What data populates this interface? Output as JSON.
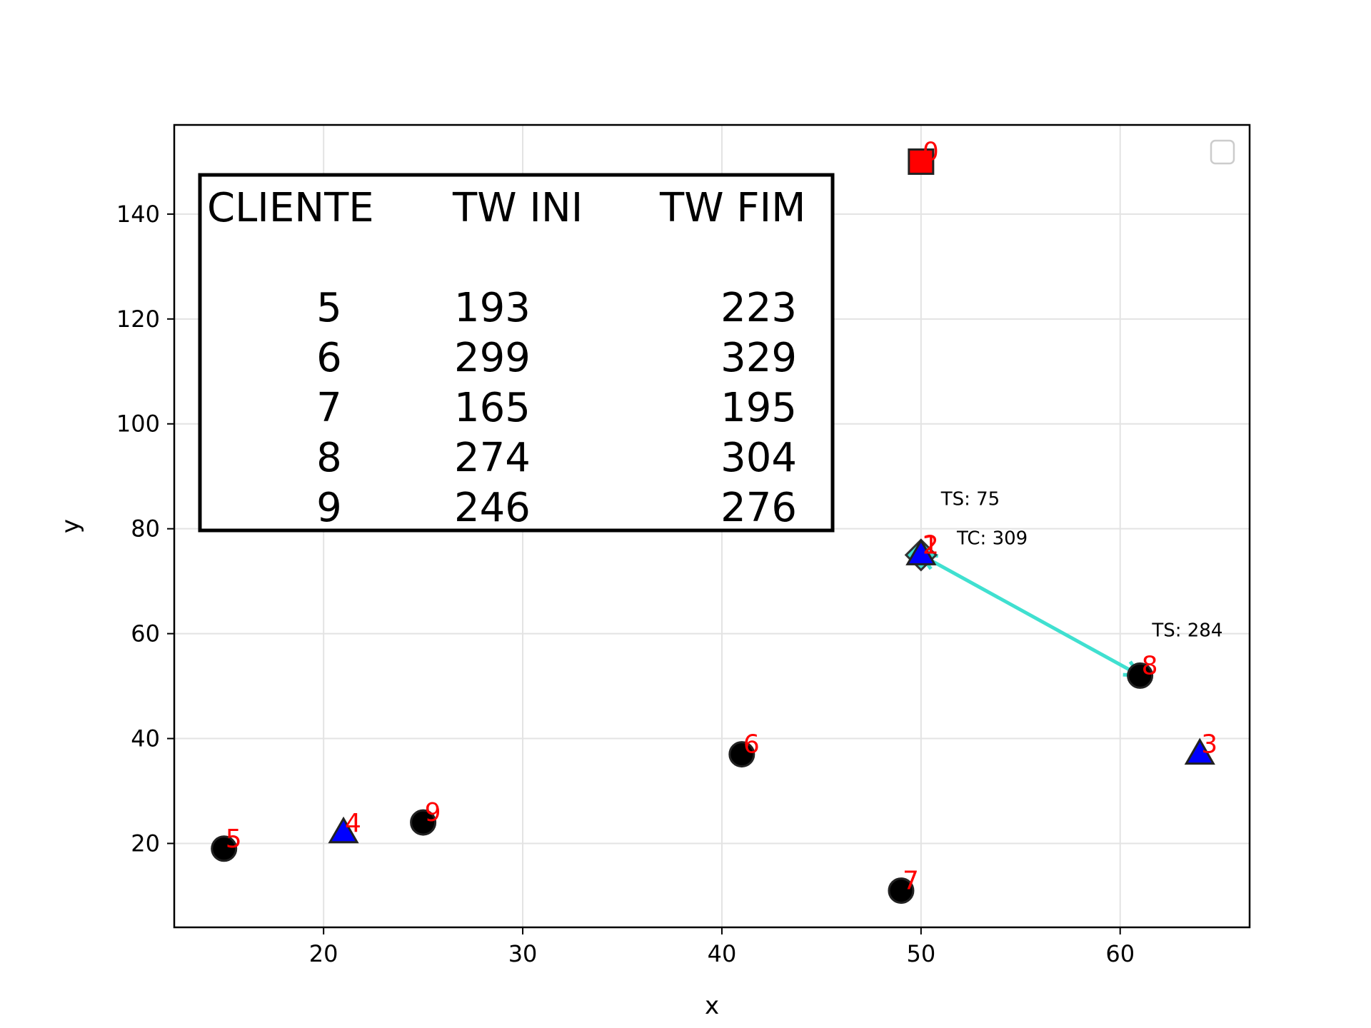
{
  "chart_data": {
    "type": "scatter",
    "xlabel": "x",
    "ylabel": "y",
    "xlim": [
      12.5,
      66.5
    ],
    "ylim": [
      4,
      157
    ],
    "x_ticks": [
      "20",
      "30",
      "40",
      "50",
      "60"
    ],
    "y_ticks": [
      "20",
      "40",
      "60",
      "80",
      "100",
      "120",
      "140"
    ],
    "grid": true,
    "legend": "top-right, empty",
    "colors": {
      "client": "#000000",
      "depot": "#ff0000",
      "triangle": "#0000ff",
      "arrow": "#40e0d0",
      "label": "#ff0000"
    },
    "points": [
      {
        "id": "0",
        "x": 50,
        "y": 150,
        "marker": "square",
        "color": "#ff0000"
      },
      {
        "id": "1",
        "x": 50,
        "y": 75,
        "marker": "diamond",
        "color": "#40e0d0"
      },
      {
        "id": "2",
        "x": 50,
        "y": 75,
        "marker": "triangle",
        "color": "#0000ff"
      },
      {
        "id": "3",
        "x": 64,
        "y": 37,
        "marker": "triangle",
        "color": "#0000ff"
      },
      {
        "id": "4",
        "x": 21,
        "y": 22,
        "marker": "triangle",
        "color": "#0000ff"
      },
      {
        "id": "5",
        "x": 15,
        "y": 19,
        "marker": "circle",
        "color": "#000000"
      },
      {
        "id": "6",
        "x": 41,
        "y": 37,
        "marker": "circle",
        "color": "#000000"
      },
      {
        "id": "7",
        "x": 49,
        "y": 11,
        "marker": "circle",
        "color": "#000000"
      },
      {
        "id": "8",
        "x": 61,
        "y": 52,
        "marker": "circle",
        "color": "#000000"
      },
      {
        "id": "9",
        "x": 25,
        "y": 24,
        "marker": "circle",
        "color": "#000000"
      }
    ],
    "arrows": [
      {
        "from": [
          50,
          75
        ],
        "to": [
          61,
          52
        ],
        "both_ends": true,
        "color": "#40e0d0"
      }
    ],
    "annotations": [
      {
        "text": "TS: 75",
        "x": 51,
        "y": 84.5
      },
      {
        "text": "TC: 309",
        "x": 51.8,
        "y": 77
      },
      {
        "text": "TS: 284",
        "x": 61.6,
        "y": 59.5
      }
    ],
    "table": {
      "headers": [
        "CLIENTE",
        "TW INI",
        "TW FIM"
      ],
      "rows": [
        [
          "5",
          "193",
          "223"
        ],
        [
          "6",
          "299",
          "329"
        ],
        [
          "7",
          "165",
          "195"
        ],
        [
          "8",
          "274",
          "304"
        ],
        [
          "9",
          "246",
          "276"
        ]
      ]
    }
  }
}
